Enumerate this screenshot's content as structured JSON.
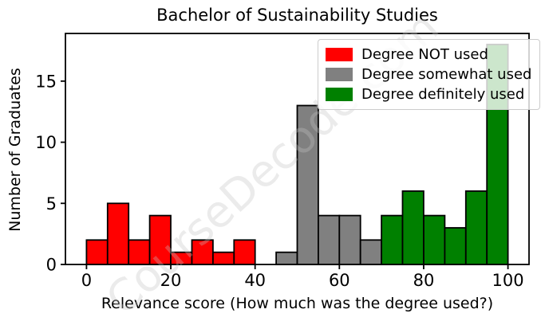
{
  "figure": {
    "watermark_text": "CourseDecode.com"
  },
  "chart_data": {
    "type": "bar",
    "subtype": "histogram",
    "title": "Bachelor of Sustainability Studies",
    "xlabel": "Relevance score (How much was the degree used?)",
    "ylabel": "Number of Graduates",
    "xlim": [
      -5,
      105
    ],
    "ylim": [
      0,
      18.9
    ],
    "bin_width": 5,
    "xticks": [
      0,
      20,
      40,
      60,
      80,
      100
    ],
    "yticks": [
      0,
      5,
      10,
      15
    ],
    "grid": false,
    "legend_position": "upper right",
    "bar_edge_color": "#000000",
    "series": [
      {
        "name": "Degree NOT used",
        "color": "#ff0000",
        "bin_starts": [
          0,
          5,
          10,
          15,
          20,
          25,
          30,
          35
        ],
        "counts": [
          2,
          5,
          2,
          4,
          1,
          2,
          1,
          2
        ]
      },
      {
        "name": "Degree somewhat used",
        "color": "#808080",
        "bin_starts": [
          45,
          50,
          55,
          60,
          65
        ],
        "counts": [
          1,
          13,
          4,
          4,
          2
        ]
      },
      {
        "name": "Degree definitely used",
        "color": "#008000",
        "bin_starts": [
          70,
          75,
          80,
          85,
          90,
          95
        ],
        "counts": [
          4,
          6,
          4,
          3,
          6,
          18
        ]
      }
    ]
  }
}
